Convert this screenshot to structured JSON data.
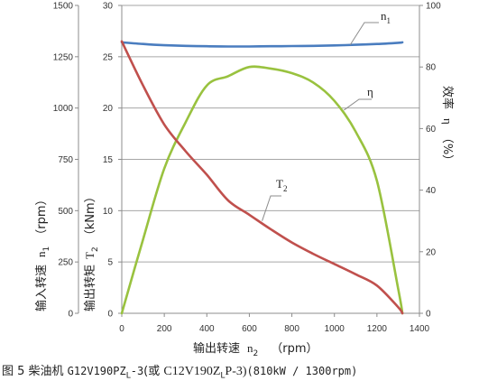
{
  "chart_data": {
    "type": "line",
    "x": [
      0,
      100,
      200,
      300,
      400,
      500,
      600,
      700,
      800,
      900,
      1000,
      1100,
      1200,
      1300,
      1320
    ],
    "x_axis": {
      "label": "输出转速",
      "label_sub": "2",
      "label_var": "n",
      "unit": "（rpm）",
      "lim": [
        0,
        1400
      ],
      "ticks": [
        0,
        200,
        400,
        600,
        800,
        1000,
        1200,
        1400
      ]
    },
    "y_left1": {
      "label": "输入转速",
      "label_var": "n",
      "label_sub": "1",
      "unit": "（rpm）",
      "lim": [
        0,
        1500
      ],
      "ticks": [
        0,
        250,
        500,
        750,
        1000,
        1250,
        1500
      ]
    },
    "y_left2": {
      "label": "输出转矩",
      "label_var": "T",
      "label_sub": "2",
      "unit": "（kNm）",
      "lim": [
        0,
        30
      ],
      "ticks": [
        0,
        5,
        10,
        15,
        20,
        25,
        30
      ]
    },
    "y_right": {
      "label": "效率",
      "label_var": "η",
      "unit": "（%）",
      "lim": [
        0,
        100
      ],
      "ticks": [
        0,
        20,
        40,
        60,
        80,
        100
      ]
    },
    "grid": true,
    "series": [
      {
        "name": "n1",
        "label_main": "n",
        "label_sub": "1",
        "axis": "y_left1",
        "color": "#4a7dbf",
        "values": [
          1320,
          1312,
          1306,
          1303,
          1301,
          1300,
          1300,
          1301,
          1302,
          1303,
          1305,
          1308,
          1312,
          1318,
          1320
        ]
      },
      {
        "name": "η",
        "label_main": "η",
        "label_sub": "",
        "axis": "y_right",
        "color": "#99c23f",
        "values": [
          0,
          24,
          47,
          62,
          74,
          77,
          80,
          79.5,
          78,
          75,
          69,
          59,
          43,
          8,
          0
        ]
      },
      {
        "name": "T2",
        "label_main": "T",
        "label_sub": "2",
        "axis": "y_left2",
        "color": "#c0504d",
        "values": [
          26.5,
          22.2,
          18.4,
          15.8,
          13.5,
          11.0,
          9.6,
          8.2,
          6.9,
          5.8,
          4.8,
          3.8,
          2.7,
          0.6,
          0
        ]
      }
    ]
  },
  "caption": {
    "prefix": "图 5  柴油机 ",
    "model1": "G12V190PZ",
    "model1_sub": "L",
    "model1_suffix": "-3",
    "paren_open": "(或 ",
    "model2": "C12V190Z",
    "model2_sub": "L",
    "model2_suffix": "P-3)",
    "rating": "(810kW / 1300rpm)"
  }
}
